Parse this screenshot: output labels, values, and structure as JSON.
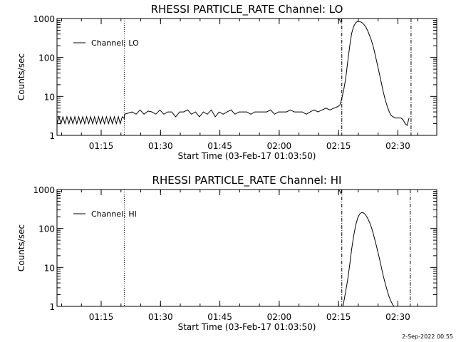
{
  "footer_timestamp": "2-Sep-2022 00:55",
  "chart_data": [
    {
      "type": "line",
      "title": "RHESSI PARTICLE_RATE Channel: LO",
      "xlabel": "Start Time (03-Feb-17 01:03:50)",
      "ylabel": "Counts/sec",
      "yscale": "log",
      "ylim": [
        1,
        1000
      ],
      "xlim_minutes": [
        0,
        96
      ],
      "x_ticks": [
        {
          "t": 11.17,
          "label": "01:15"
        },
        {
          "t": 26.17,
          "label": "01:30"
        },
        {
          "t": 41.17,
          "label": "01:45"
        },
        {
          "t": 56.17,
          "label": "02:00"
        },
        {
          "t": 71.17,
          "label": "02:15"
        },
        {
          "t": 86.17,
          "label": "02:30"
        }
      ],
      "y_ticks": [
        {
          "v": 1,
          "label": "1"
        },
        {
          "v": 10,
          "label": "10"
        },
        {
          "v": 100,
          "label": "100"
        },
        {
          "v": 1000,
          "label": "1000"
        }
      ],
      "legend": {
        "entry": "Channel: LO",
        "position": "top-left"
      },
      "flag_marker": {
        "t": 71.5,
        "text": "N"
      },
      "vlines": [
        {
          "t": 17.0,
          "style": "dotted"
        },
        {
          "t": 72.0,
          "style": "dashdot"
        },
        {
          "t": 89.5,
          "style": "dashdot"
        }
      ],
      "series": [
        {
          "name": "Channel: LO",
          "x": [
            0,
            0.5,
            1,
            1.5,
            2,
            2.5,
            3,
            3.5,
            4,
            4.5,
            5,
            5.5,
            6,
            6.5,
            7,
            7.5,
            8,
            8.5,
            9,
            9.5,
            10,
            10.5,
            11,
            11.5,
            12,
            12.5,
            13,
            13.5,
            14,
            14.5,
            15,
            15.5,
            16,
            16.5,
            17,
            17.1,
            19,
            20,
            21,
            22,
            23,
            24,
            25,
            26,
            27,
            28,
            29,
            30,
            31,
            32,
            33,
            34,
            35,
            36,
            37,
            38,
            39,
            40,
            41,
            42,
            43,
            44,
            45,
            46,
            47,
            48,
            49,
            50,
            51,
            52,
            53,
            54,
            55,
            56,
            57,
            58,
            59,
            60,
            61,
            62,
            63,
            64,
            65,
            66,
            67,
            68,
            69,
            70,
            71,
            71.5,
            72,
            72.5,
            73,
            73.5,
            74,
            74.5,
            75,
            75.5,
            76,
            76.5,
            77,
            77.5,
            78,
            78.5,
            79,
            79.5,
            80,
            80.5,
            81,
            81.5,
            82,
            82.5,
            83,
            83.5,
            84,
            84.5,
            85,
            85.5,
            86,
            86.5,
            87,
            87.5,
            88,
            88.5,
            89
          ],
          "values": [
            2.0,
            3.0,
            2.0,
            3.0,
            2.0,
            3.0,
            2.0,
            3.0,
            2.0,
            3.0,
            2.0,
            3.0,
            2.0,
            3.0,
            2.0,
            3.0,
            2.0,
            3.0,
            2.0,
            3.0,
            2.0,
            3.0,
            2.0,
            3.0,
            2.0,
            3.0,
            2.0,
            3.0,
            2.0,
            3.0,
            2.0,
            3.0,
            2.0,
            3.0,
            2.7,
            3.5,
            4.0,
            3.5,
            4.5,
            3.5,
            4.2,
            4.0,
            3.5,
            4.5,
            3.5,
            4.0,
            4.0,
            3.0,
            4.0,
            4.0,
            4.5,
            3.5,
            4.0,
            3.0,
            4.0,
            3.5,
            4.5,
            3.0,
            4.0,
            3.5,
            4.0,
            4.5,
            3.5,
            4.0,
            4.0,
            4.0,
            3.5,
            4.0,
            4.0,
            4.0,
            4.0,
            4.5,
            3.5,
            4.0,
            4.0,
            4.0,
            4.5,
            4.0,
            4.0,
            4.0,
            3.5,
            4.0,
            4.5,
            4.0,
            4.5,
            5.0,
            4.5,
            5.0,
            5.5,
            6.0,
            9.0,
            15,
            30,
            80,
            200,
            420,
            630,
            780,
            850,
            830,
            800,
            720,
            620,
            500,
            370,
            270,
            180,
            110,
            65,
            38,
            22,
            13,
            8,
            5.5,
            4.0,
            3.2,
            3.0,
            2.8,
            2.8,
            2.8,
            2.8,
            2.5,
            2.0,
            1.8,
            2.8
          ]
        }
      ]
    },
    {
      "type": "line",
      "title": "RHESSI PARTICLE_RATE Channel: HI",
      "xlabel": "Start Time (03-Feb-17 01:03:50)",
      "ylabel": "Counts/sec",
      "yscale": "log",
      "ylim": [
        1,
        1000
      ],
      "xlim_minutes": [
        0,
        96
      ],
      "x_ticks": [
        {
          "t": 11.17,
          "label": "01:15"
        },
        {
          "t": 26.17,
          "label": "01:30"
        },
        {
          "t": 41.17,
          "label": "01:45"
        },
        {
          "t": 56.17,
          "label": "02:00"
        },
        {
          "t": 71.17,
          "label": "02:15"
        },
        {
          "t": 86.17,
          "label": "02:30"
        }
      ],
      "y_ticks": [
        {
          "v": 1,
          "label": "1"
        },
        {
          "v": 10,
          "label": "10"
        },
        {
          "v": 100,
          "label": "100"
        },
        {
          "v": 1000,
          "label": "1000"
        }
      ],
      "legend": {
        "entry": "Channel: HI",
        "position": "top-left"
      },
      "flag_marker": {
        "t": 71.5,
        "text": "N"
      },
      "vlines": [
        {
          "t": 17.0,
          "style": "dotted"
        },
        {
          "t": 72.0,
          "style": "dashdot"
        },
        {
          "t": 89.3,
          "style": "dashdot"
        }
      ],
      "series": [
        {
          "name": "Channel: HI",
          "x": [
            72.3,
            73,
            73.5,
            74,
            74.5,
            75,
            75.5,
            76,
            76.5,
            77,
            77.5,
            78,
            78.5,
            79,
            79.5,
            80,
            80.5,
            81,
            81.5,
            82,
            82.5,
            83,
            83.5,
            84,
            84.5,
            85,
            85.2
          ],
          "values": [
            1.0,
            2.5,
            5.0,
            12,
            30,
            65,
            120,
            185,
            235,
            255,
            250,
            225,
            185,
            145,
            105,
            70,
            45,
            28,
            17,
            10,
            6.0,
            3.8,
            2.5,
            1.7,
            1.3,
            1.05,
            1.0
          ]
        }
      ]
    }
  ]
}
